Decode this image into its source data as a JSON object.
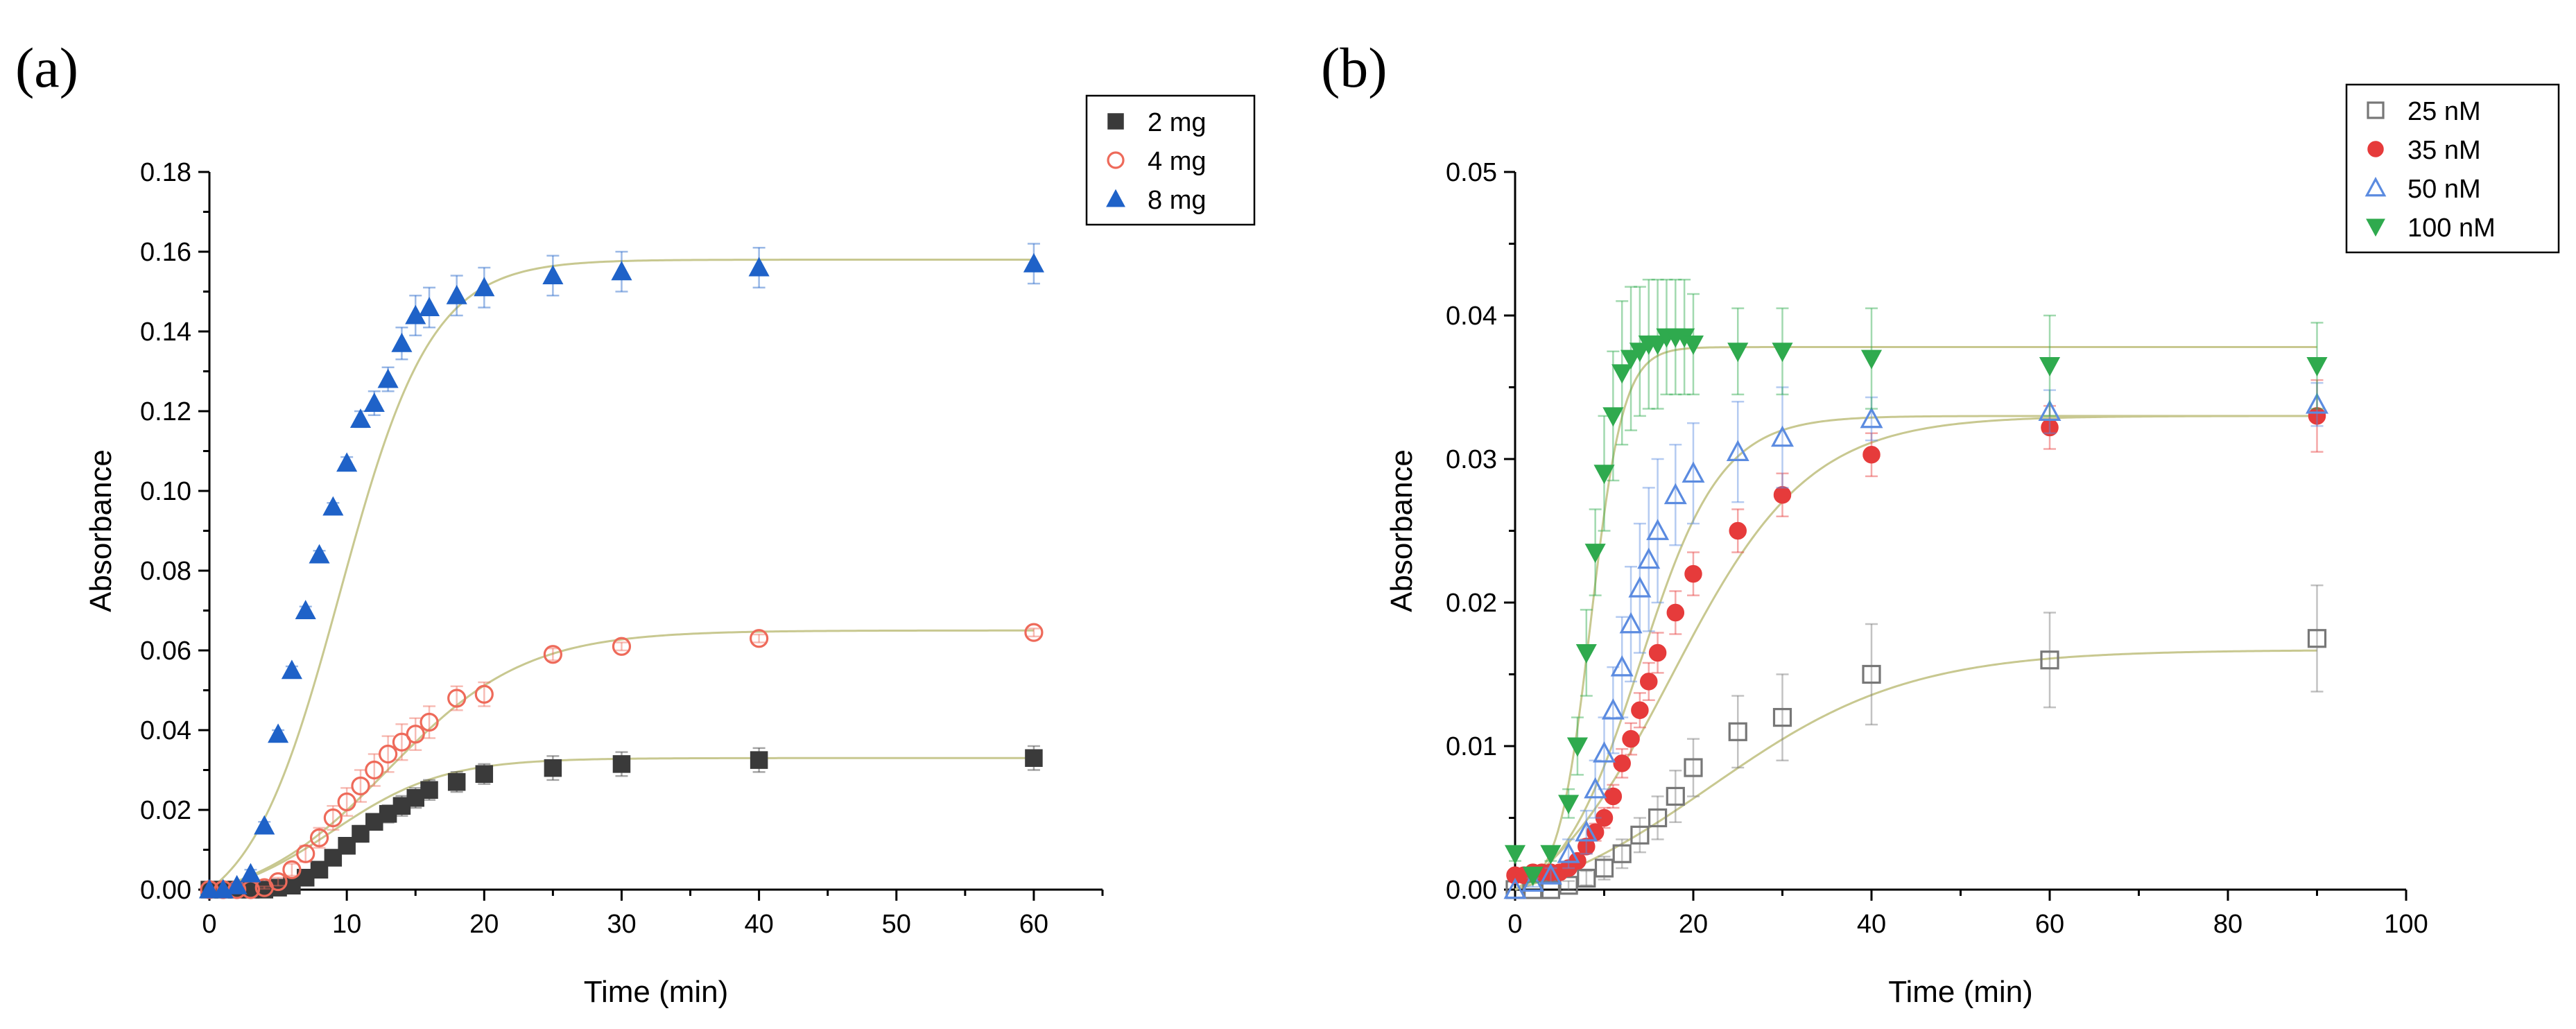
{
  "chart_data": [
    {
      "type": "scatter",
      "panel_label": "(a)",
      "title": "",
      "xlabel": "Time (min)",
      "ylabel": "Absorbance",
      "xlim": [
        0,
        65
      ],
      "ylim": [
        0,
        0.18
      ],
      "xticks": [
        0,
        10,
        20,
        30,
        40,
        50,
        60
      ],
      "yticks": [
        0,
        0.02,
        0.04,
        0.06,
        0.08,
        0.1,
        0.12,
        0.14,
        0.16,
        0.18
      ],
      "xtick_labels": [
        "0",
        "10",
        "20",
        "30",
        "40",
        "50",
        "60"
      ],
      "ytick_labels": [
        "0.00",
        "0.02",
        "0.04",
        "0.06",
        "0.08",
        "0.10",
        "0.12",
        "0.14",
        "0.16",
        "0.18"
      ],
      "grid": false,
      "legend_position": "top-right",
      "fit_color": "#c8c890",
      "series": [
        {
          "name": "2 mg",
          "marker": "square",
          "filled": true,
          "color": "#3a3a3a",
          "x": [
            0,
            1,
            2,
            3,
            4,
            5,
            6,
            7,
            8,
            9,
            10,
            11,
            12,
            13,
            14,
            15,
            16,
            18,
            20,
            25,
            30,
            40,
            60
          ],
          "y": [
            0,
            0,
            0,
            0,
            0,
            0.0005,
            0.001,
            0.003,
            0.005,
            0.008,
            0.011,
            0.014,
            0.017,
            0.019,
            0.021,
            0.023,
            0.025,
            0.027,
            0.029,
            0.0305,
            0.0315,
            0.0325,
            0.033
          ],
          "err": [
            0,
            0,
            0,
            0,
            0,
            0.0003,
            0.0005,
            0.001,
            0.0012,
            0.0015,
            0.0018,
            0.002,
            0.002,
            0.0022,
            0.0025,
            0.0025,
            0.0025,
            0.0025,
            0.0025,
            0.003,
            0.003,
            0.003,
            0.003
          ],
          "fit": {
            "k": 0.25,
            "t0": 9.0,
            "ymax": 0.033
          }
        },
        {
          "name": "4 mg",
          "marker": "circle",
          "filled": false,
          "color": "#ee6a5a",
          "x": [
            0,
            1,
            2,
            3,
            4,
            5,
            6,
            7,
            8,
            9,
            10,
            11,
            12,
            13,
            14,
            15,
            16,
            18,
            20,
            25,
            30,
            40,
            60
          ],
          "y": [
            0,
            0,
            0,
            0,
            0.0005,
            0.002,
            0.005,
            0.009,
            0.013,
            0.018,
            0.022,
            0.026,
            0.03,
            0.034,
            0.037,
            0.039,
            0.042,
            0.048,
            0.049,
            0.059,
            0.061,
            0.063,
            0.0645
          ],
          "err": [
            0,
            0,
            0,
            0,
            0.0003,
            0.001,
            0.0015,
            0.002,
            0.0025,
            0.003,
            0.0035,
            0.004,
            0.004,
            0.0045,
            0.0045,
            0.004,
            0.004,
            0.003,
            0.003,
            0.0015,
            0.001,
            0.001,
            0.001
          ],
          "fit": {
            "k": 0.2,
            "t0": 13.0,
            "ymax": 0.065
          }
        },
        {
          "name": "8 mg",
          "marker": "triangle-up",
          "filled": true,
          "color": "#1f62c8",
          "x": [
            0,
            1,
            2,
            3,
            4,
            5,
            6,
            7,
            8,
            9,
            10,
            11,
            12,
            13,
            14,
            15,
            16,
            18,
            20,
            25,
            30,
            40,
            60
          ],
          "y": [
            0,
            0,
            0.001,
            0.004,
            0.016,
            0.039,
            0.055,
            0.07,
            0.084,
            0.096,
            0.107,
            0.118,
            0.122,
            0.128,
            0.137,
            0.144,
            0.146,
            0.149,
            0.151,
            0.154,
            0.155,
            0.156,
            0.157
          ],
          "err": [
            0,
            0,
            0.0005,
            0.001,
            0.001,
            0.001,
            0.001,
            0.001,
            0.001,
            0.001,
            0.0015,
            0.002,
            0.003,
            0.003,
            0.004,
            0.005,
            0.005,
            0.005,
            0.005,
            0.005,
            0.005,
            0.005,
            0.005
          ],
          "fit": {
            "k": 0.3,
            "t0": 9.5,
            "ymax": 0.158
          }
        }
      ]
    },
    {
      "type": "scatter",
      "panel_label": "(b)",
      "title": "",
      "xlabel": "Time (min)",
      "ylabel": "Absorbance",
      "xlim": [
        0,
        100
      ],
      "ylim": [
        0,
        0.05
      ],
      "xticks": [
        0,
        20,
        40,
        60,
        80,
        100
      ],
      "yticks": [
        0,
        0.01,
        0.02,
        0.03,
        0.04,
        0.05
      ],
      "xtick_labels": [
        "0",
        "20",
        "40",
        "60",
        "80",
        "100"
      ],
      "ytick_labels": [
        "0.00",
        "0.01",
        "0.02",
        "0.03",
        "0.04",
        "0.05"
      ],
      "grid": false,
      "legend_position": "top-right",
      "fit_color": "#c8c890",
      "series": [
        {
          "name": "25 nM",
          "marker": "square",
          "filled": false,
          "color": "#777777",
          "x": [
            0,
            2,
            4,
            6,
            8,
            10,
            12,
            14,
            16,
            18,
            20,
            25,
            30,
            40,
            60,
            90
          ],
          "y": [
            0,
            0,
            0,
            0.0003,
            0.0008,
            0.0015,
            0.0025,
            0.0038,
            0.005,
            0.0065,
            0.0085,
            0.011,
            0.012,
            0.015,
            0.016,
            0.0175
          ],
          "err": [
            0,
            0,
            0,
            0.0003,
            0.0005,
            0.0008,
            0.001,
            0.0012,
            0.0015,
            0.0018,
            0.002,
            0.0025,
            0.003,
            0.0035,
            0.0033,
            0.0037
          ],
          "fit": {
            "k": 0.09,
            "t0": 22.0,
            "ymax": 0.0167
          }
        },
        {
          "name": "35 nM",
          "marker": "circle",
          "filled": true,
          "color": "#e63b3b",
          "x": [
            0,
            1,
            2,
            3,
            4,
            5,
            6,
            7,
            8,
            9,
            10,
            11,
            12,
            13,
            14,
            15,
            16,
            18,
            20,
            25,
            30,
            40,
            60,
            90
          ],
          "y": [
            0.001,
            0.001,
            0.0012,
            0.0012,
            0.0012,
            0.0012,
            0.0015,
            0.002,
            0.003,
            0.004,
            0.005,
            0.0065,
            0.0088,
            0.0105,
            0.0125,
            0.0145,
            0.0165,
            0.0193,
            0.022,
            0.025,
            0.0275,
            0.0303,
            0.0322,
            0.033
          ],
          "err": [
            0.0003,
            0.0003,
            0.0003,
            0.0003,
            0.0003,
            0.0003,
            0.0003,
            0.0004,
            0.0005,
            0.0006,
            0.0007,
            0.0008,
            0.001,
            0.0011,
            0.0012,
            0.0013,
            0.0014,
            0.0015,
            0.0015,
            0.0015,
            0.0015,
            0.0015,
            0.0015,
            0.0025
          ],
          "fit": {
            "k": 0.13,
            "t0": 17.5,
            "ymax": 0.033
          }
        },
        {
          "name": "50 nM",
          "marker": "triangle-up",
          "filled": false,
          "color": "#5b8be0",
          "x": [
            0,
            2,
            4,
            6,
            8,
            9,
            10,
            11,
            12,
            13,
            14,
            15,
            16,
            18,
            20,
            25,
            30,
            40,
            60,
            90
          ],
          "y": [
            0,
            0.0005,
            0.001,
            0.0025,
            0.004,
            0.007,
            0.0095,
            0.0125,
            0.0155,
            0.0185,
            0.021,
            0.023,
            0.025,
            0.0275,
            0.029,
            0.0305,
            0.0315,
            0.0328,
            0.0333,
            0.0338
          ],
          "err": [
            0,
            0.0003,
            0.0005,
            0.001,
            0.0015,
            0.002,
            0.0025,
            0.003,
            0.0035,
            0.004,
            0.0045,
            0.005,
            0.005,
            0.0035,
            0.0035,
            0.0035,
            0.0035,
            0.0015,
            0.0015,
            0.0015
          ],
          "fit": {
            "k": 0.22,
            "t0": 14.0,
            "ymax": 0.033
          }
        },
        {
          "name": "100 nM",
          "marker": "triangle-down",
          "filled": true,
          "color": "#2faa4e",
          "x": [
            0,
            2,
            4,
            6,
            7,
            8,
            9,
            10,
            11,
            12,
            13,
            14,
            15,
            16,
            17,
            18,
            19,
            20,
            25,
            30,
            40,
            60,
            90
          ],
          "y": [
            0.0025,
            0.001,
            0.0025,
            0.006,
            0.01,
            0.0165,
            0.0235,
            0.029,
            0.033,
            0.036,
            0.037,
            0.0375,
            0.038,
            0.038,
            0.0385,
            0.0385,
            0.0385,
            0.038,
            0.0375,
            0.0375,
            0.037,
            0.0365,
            0.0365
          ],
          "err": [
            0.0005,
            0.0005,
            0.0005,
            0.001,
            0.002,
            0.003,
            0.003,
            0.004,
            0.0045,
            0.005,
            0.005,
            0.0045,
            0.0045,
            0.0045,
            0.004,
            0.004,
            0.004,
            0.0035,
            0.003,
            0.003,
            0.0035,
            0.0035,
            0.003
          ],
          "fit": {
            "k": 0.55,
            "t0": 8.5,
            "ymax": 0.0378
          }
        }
      ]
    }
  ]
}
